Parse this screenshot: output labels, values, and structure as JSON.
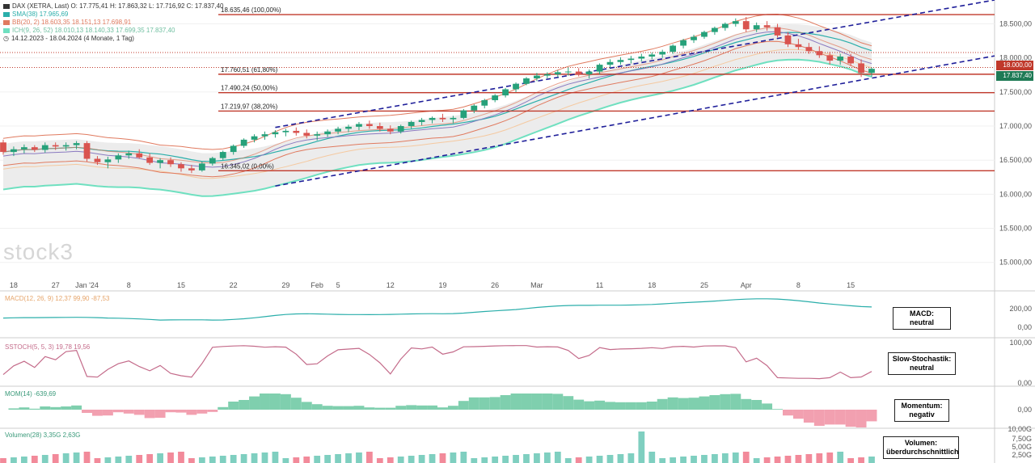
{
  "header": {
    "symbol_line": "DAX (XETRA, Last)  O: 17.775,41  H: 17.863,32  L: 17.716,92  C: 17.837,40",
    "sma_label": "SMA(38)  17.965,69",
    "bb_label": "BB(20, 2)  18.603,35  18.151,13  17.698,91",
    "ichimoku_label": "ICH(9, 26, 52)  18.010,13  18.140,33  17.699,35  17.837,40",
    "range_label": "14.12.2023 - 18.04.2024  (4 Monate, 1 Tag)"
  },
  "colors": {
    "up": "#26a17a",
    "down": "#d9534f",
    "fib": "#c0392b",
    "channel": "#1f1f9a",
    "sma": "#2aaeaa",
    "bb": "#e07a5f",
    "ichi_lead": "#6fe0c0",
    "ichi_cloud": "#f5c9a0",
    "ichi_base": "#8a7ac0",
    "grey": "#d9d9d9"
  },
  "watermark": "stock3",
  "price_boxes": [
    "18.000,00",
    "17.837,40"
  ],
  "chart_data": {
    "type": "candlestick",
    "title": "DAX (XETRA, Last)",
    "ylim": [
      14700,
      18850
    ],
    "y_ticks": [
      15000,
      15500,
      16000,
      16500,
      17000,
      17500,
      18000,
      18500
    ],
    "y_tick_labels": [
      "15.000,00",
      "15.500,00",
      "16.000,00",
      "16.500,00",
      "17.000,00",
      "17.500,00",
      "18.000,00",
      "18.500,00"
    ],
    "x_ticks": [
      {
        "label": "18",
        "i": 1
      },
      {
        "label": "27",
        "i": 5
      },
      {
        "label": "Jan '24",
        "i": 8
      },
      {
        "label": "8",
        "i": 12
      },
      {
        "label": "15",
        "i": 17
      },
      {
        "label": "22",
        "i": 22
      },
      {
        "label": "29",
        "i": 27
      },
      {
        "label": "Feb",
        "i": 30
      },
      {
        "label": "5",
        "i": 32
      },
      {
        "label": "12",
        "i": 37
      },
      {
        "label": "19",
        "i": 42
      },
      {
        "label": "26",
        "i": 47
      },
      {
        "label": "Mar",
        "i": 51
      },
      {
        "label": "11",
        "i": 57
      },
      {
        "label": "18",
        "i": 62
      },
      {
        "label": "25",
        "i": 67
      },
      {
        "label": "Apr",
        "i": 71
      },
      {
        "label": "8",
        "i": 76
      },
      {
        "label": "15",
        "i": 81
      }
    ],
    "candles": [
      [
        16760,
        16800,
        16580,
        16620
      ],
      [
        16620,
        16700,
        16560,
        16660
      ],
      [
        16660,
        16730,
        16600,
        16690
      ],
      [
        16690,
        16720,
        16620,
        16650
      ],
      [
        16650,
        16760,
        16610,
        16720
      ],
      [
        16720,
        16760,
        16650,
        16700
      ],
      [
        16700,
        16760,
        16640,
        16720
      ],
      [
        16720,
        16780,
        16660,
        16750
      ],
      [
        16750,
        16780,
        16480,
        16520
      ],
      [
        16520,
        16560,
        16430,
        16470
      ],
      [
        16470,
        16550,
        16380,
        16510
      ],
      [
        16510,
        16600,
        16460,
        16570
      ],
      [
        16570,
        16640,
        16520,
        16600
      ],
      [
        16600,
        16660,
        16520,
        16540
      ],
      [
        16540,
        16600,
        16430,
        16460
      ],
      [
        16460,
        16530,
        16380,
        16500
      ],
      [
        16500,
        16540,
        16400,
        16440
      ],
      [
        16440,
        16470,
        16330,
        16380
      ],
      [
        16380,
        16430,
        16310,
        16350
      ],
      [
        16350,
        16480,
        16330,
        16450
      ],
      [
        16450,
        16550,
        16420,
        16530
      ],
      [
        16530,
        16640,
        16500,
        16620
      ],
      [
        16620,
        16730,
        16580,
        16710
      ],
      [
        16710,
        16820,
        16680,
        16800
      ],
      [
        16800,
        16880,
        16760,
        16850
      ],
      [
        16850,
        16920,
        16800,
        16880
      ],
      [
        16880,
        16940,
        16830,
        16910
      ],
      [
        16910,
        16960,
        16850,
        16930
      ],
      [
        16930,
        16980,
        16860,
        16900
      ],
      [
        16900,
        16950,
        16820,
        16860
      ],
      [
        16860,
        16920,
        16790,
        16880
      ],
      [
        16880,
        16950,
        16840,
        16920
      ],
      [
        16920,
        16990,
        16880,
        16960
      ],
      [
        16960,
        17020,
        16910,
        16990
      ],
      [
        16990,
        17060,
        16940,
        17030
      ],
      [
        17030,
        17080,
        16960,
        17000
      ],
      [
        17000,
        17050,
        16920,
        16960
      ],
      [
        16960,
        17010,
        16880,
        16920
      ],
      [
        16920,
        17020,
        16890,
        17000
      ],
      [
        17000,
        17080,
        16960,
        17060
      ],
      [
        17060,
        17120,
        17010,
        17090
      ],
      [
        17090,
        17140,
        17040,
        17120
      ],
      [
        17120,
        17180,
        17060,
        17100
      ],
      [
        17100,
        17150,
        17040,
        17120
      ],
      [
        17120,
        17250,
        17100,
        17230
      ],
      [
        17230,
        17320,
        17190,
        17300
      ],
      [
        17300,
        17400,
        17260,
        17380
      ],
      [
        17380,
        17470,
        17350,
        17450
      ],
      [
        17450,
        17560,
        17420,
        17540
      ],
      [
        17540,
        17640,
        17500,
        17620
      ],
      [
        17620,
        17720,
        17600,
        17700
      ],
      [
        17700,
        17780,
        17660,
        17740
      ],
      [
        17740,
        17790,
        17700,
        17760
      ],
      [
        17760,
        17820,
        17720,
        17790
      ],
      [
        17790,
        17860,
        17740,
        17800
      ],
      [
        17800,
        17850,
        17730,
        17760
      ],
      [
        17760,
        17830,
        17700,
        17800
      ],
      [
        17800,
        17920,
        17760,
        17900
      ],
      [
        17900,
        17980,
        17860,
        17940
      ],
      [
        17940,
        18010,
        17900,
        17970
      ],
      [
        17970,
        18030,
        17920,
        17990
      ],
      [
        17990,
        18060,
        17950,
        18020
      ],
      [
        18020,
        18080,
        17980,
        18050
      ],
      [
        18050,
        18120,
        18000,
        18090
      ],
      [
        18090,
        18200,
        18060,
        18180
      ],
      [
        18180,
        18280,
        18140,
        18260
      ],
      [
        18260,
        18340,
        18220,
        18310
      ],
      [
        18310,
        18400,
        18280,
        18380
      ],
      [
        18380,
        18460,
        18340,
        18440
      ],
      [
        18440,
        18520,
        18400,
        18500
      ],
      [
        18500,
        18580,
        18460,
        18540
      ],
      [
        18540,
        18600,
        18380,
        18420
      ],
      [
        18420,
        18520,
        18380,
        18480
      ],
      [
        18480,
        18540,
        18400,
        18450
      ],
      [
        18450,
        18500,
        18300,
        18330
      ],
      [
        18330,
        18380,
        18160,
        18200
      ],
      [
        18200,
        18280,
        18120,
        18160
      ],
      [
        18160,
        18220,
        18060,
        18100
      ],
      [
        18100,
        18170,
        18000,
        18040
      ],
      [
        18040,
        18090,
        17900,
        17960
      ],
      [
        17960,
        18060,
        17900,
        18020
      ],
      [
        18020,
        18060,
        17880,
        17920
      ],
      [
        17920,
        17980,
        17720,
        17780
      ],
      [
        17780,
        17860,
        17720,
        17840
      ]
    ],
    "fibonacci": [
      {
        "label": "18.635,46 (100,00%)",
        "value": 18635.46
      },
      {
        "label": "17.760,51 (61,80%)",
        "value": 17760.51
      },
      {
        "label": "17.490,24 (50,00%)",
        "value": 17490.24
      },
      {
        "label": "17.219,97 (38,20%)",
        "value": 17219.97
      },
      {
        "label": "16.345,02 (0,00%)",
        "value": 16345.02
      }
    ],
    "dotted_levels": [
      18080,
      17860
    ],
    "indicators": {
      "macd": {
        "label": "MACD(12, 26, 9)  12,37  99,90  -87,53",
        "y_ticks": [
          "200,00",
          "0,00"
        ],
        "status": "MACD:\nneutral"
      },
      "sstoch": {
        "label": "SSTOCH(5, 5, 3)  19,78  19,56",
        "y_ticks": [
          "100,00",
          "0,00"
        ],
        "status": "Slow-Stochastik:\nneutral"
      },
      "mom": {
        "label": "MOM(14)  -639,69",
        "y_ticks": [
          "0,00"
        ],
        "status": "Momentum:\nnegativ"
      },
      "vol": {
        "label": "Volumen(28)  3,35G  2,63G",
        "y_ticks": [
          "10,00G",
          "7,50G",
          "5,00G",
          "2,50G"
        ],
        "status": "Volumen:\nüberdurchschnittlich"
      }
    }
  }
}
